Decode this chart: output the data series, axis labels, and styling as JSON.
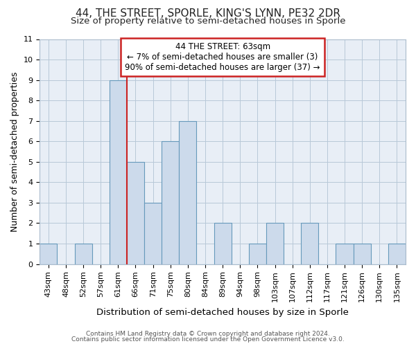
{
  "title": "44, THE STREET, SPORLE, KING'S LYNN, PE32 2DR",
  "subtitle": "Size of property relative to semi-detached houses in Sporle",
  "xlabel": "Distribution of semi-detached houses by size in Sporle",
  "ylabel": "Number of semi-detached properties",
  "bar_labels": [
    "43sqm",
    "48sqm",
    "52sqm",
    "57sqm",
    "61sqm",
    "66sqm",
    "71sqm",
    "75sqm",
    "80sqm",
    "84sqm",
    "89sqm",
    "94sqm",
    "98sqm",
    "103sqm",
    "107sqm",
    "112sqm",
    "117sqm",
    "121sqm",
    "126sqm",
    "130sqm",
    "135sqm"
  ],
  "bar_values": [
    1,
    0,
    1,
    0,
    9,
    5,
    3,
    6,
    7,
    0,
    2,
    0,
    1,
    2,
    0,
    2,
    0,
    1,
    1,
    0,
    1
  ],
  "bar_color": "#ccdaeb",
  "bar_edge_color": "#6699bb",
  "property_line_index": 4,
  "property_line_color": "#cc2222",
  "ylim": [
    0,
    11
  ],
  "yticks": [
    0,
    1,
    2,
    3,
    4,
    5,
    6,
    7,
    8,
    9,
    10,
    11
  ],
  "annotation_title": "44 THE STREET: 63sqm",
  "annotation_line1": "← 7% of semi-detached houses are smaller (3)",
  "annotation_line2": "90% of semi-detached houses are larger (37) →",
  "annotation_box_color": "#ffffff",
  "annotation_box_edge": "#cc2222",
  "footer_line1": "Contains HM Land Registry data © Crown copyright and database right 2024.",
  "footer_line2": "Contains public sector information licensed under the Open Government Licence v3.0.",
  "bg_color": "#ffffff",
  "plot_bg_color": "#e8eef6",
  "title_fontsize": 11,
  "subtitle_fontsize": 9.5,
  "tick_fontsize": 8,
  "ylabel_fontsize": 9,
  "xlabel_fontsize": 9.5,
  "annotation_fontsize": 8.5,
  "footer_fontsize": 6.5
}
